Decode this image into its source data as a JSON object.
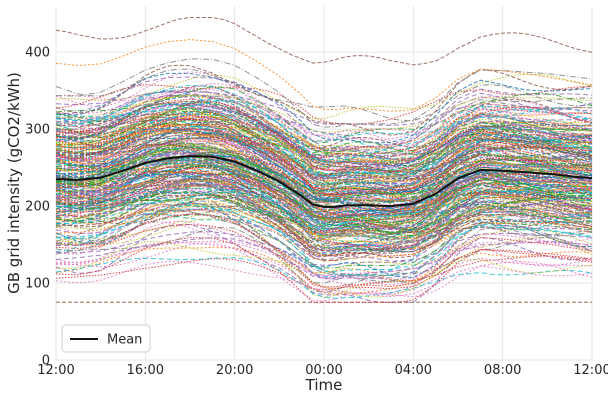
{
  "chart_data": {
    "type": "line",
    "title": "",
    "xlabel": "Time",
    "ylabel": "GB grid intensity (gCO2/kWh)",
    "x_tick_labels": [
      "12:00",
      "16:00",
      "20:00",
      "00:00",
      "04:00",
      "08:00",
      "12:00"
    ],
    "x_tick_hours": [
      0,
      4,
      8,
      12,
      16,
      20,
      24
    ],
    "y_ticks": [
      0,
      100,
      200,
      300,
      400
    ],
    "ylim": [
      0,
      460
    ],
    "xlim_hours": [
      0,
      24
    ],
    "grid": true,
    "legend_position": "lower-left",
    "legend": [
      {
        "label": "Mean",
        "color": "#111111"
      }
    ],
    "mean_series": {
      "name": "Mean",
      "x_hours": [
        0,
        1,
        2,
        3,
        4,
        5,
        6,
        7,
        8,
        9,
        10,
        11,
        11.5,
        12,
        12.5,
        13,
        14,
        15,
        16,
        17,
        18,
        19,
        20,
        21,
        22,
        23,
        24
      ],
      "values": [
        235,
        234,
        237,
        246,
        256,
        262,
        265,
        264,
        258,
        246,
        232,
        213,
        202,
        199,
        199,
        201,
        201,
        200,
        203,
        216,
        236,
        247,
        246,
        244,
        242,
        239,
        236
      ]
    },
    "daily_profiles_summary": {
      "description_of_range": "approximately 300 individual daily intensity profiles plotted behind the mean",
      "upper_envelope": 440,
      "lower_envelope": 75
    },
    "palette": [
      "#1f77b4",
      "#ff7f0e",
      "#2ca02c",
      "#d62728",
      "#9467bd",
      "#8c564b",
      "#e377c2",
      "#7f7f7f",
      "#bcbd22",
      "#17becf"
    ]
  }
}
